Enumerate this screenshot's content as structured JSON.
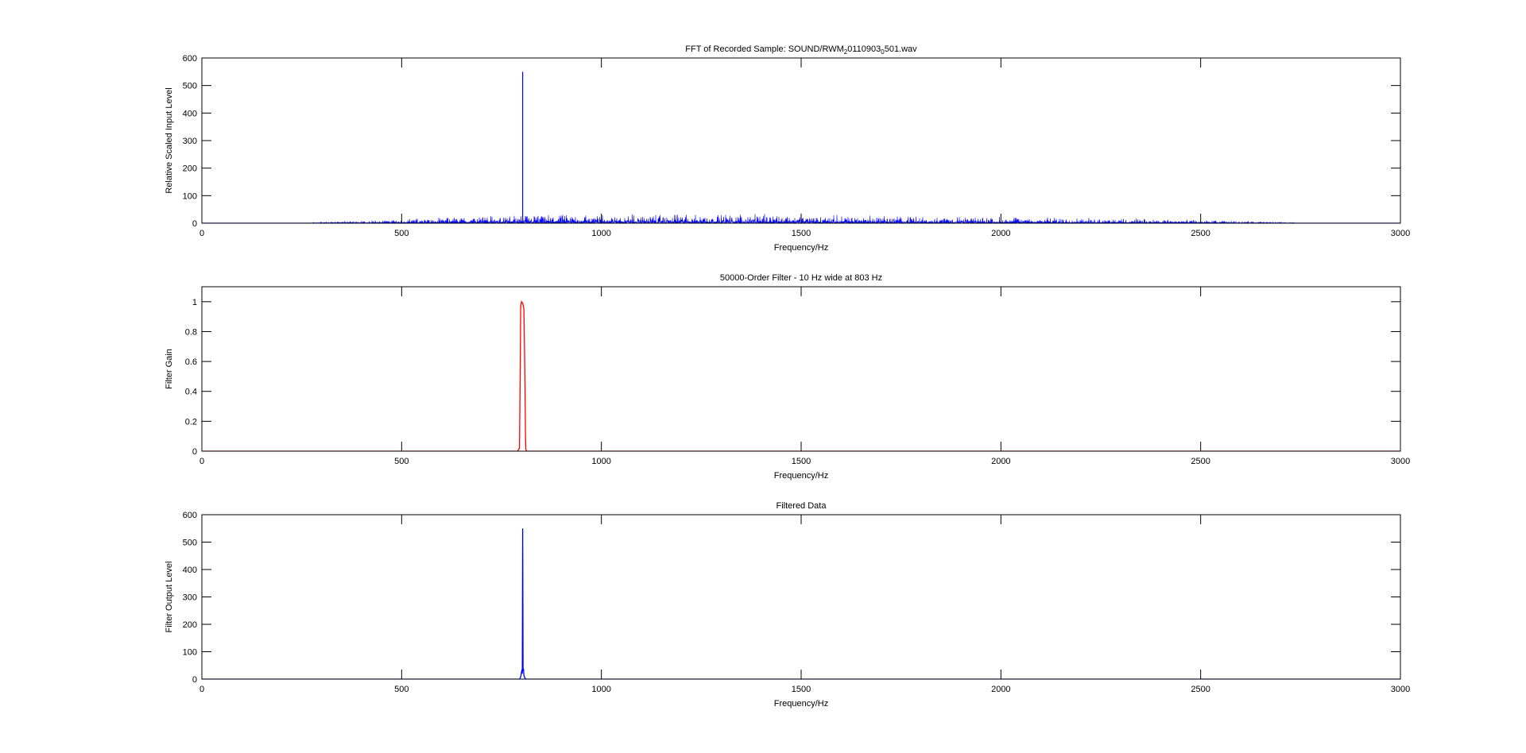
{
  "chart_data": [
    {
      "type": "line",
      "title": "FFT of Recorded Sample: SOUND/RWM",
      "title_sub1": "2",
      "title_mid": "0110903",
      "title_sub2": "0",
      "title_end": "501.wav",
      "xlabel": "Frequency/Hz",
      "ylabel": "Relative Scaled Input Level",
      "xlim": [
        0,
        3000
      ],
      "ylim": [
        0,
        600
      ],
      "xticks": [
        0,
        500,
        1000,
        1500,
        2000,
        2500,
        3000
      ],
      "yticks": [
        0,
        100,
        200,
        300,
        400,
        500,
        600
      ],
      "color": "#0000ff",
      "noise_envelope": {
        "x": [
          0,
          250,
          300,
          400,
          500,
          600,
          700,
          800,
          1000,
          1200,
          1400,
          1600,
          1800,
          2000,
          2200,
          2400,
          2500,
          2600,
          2700,
          2750,
          3000
        ],
        "y": [
          0,
          0,
          3,
          6,
          9,
          13,
          16,
          18,
          20,
          21,
          20,
          18,
          16,
          14,
          12,
          9,
          7,
          5,
          3,
          0,
          0
        ]
      },
      "peaks": [
        {
          "x": 803,
          "y": 550
        }
      ]
    },
    {
      "type": "line",
      "title": "50000-Order Filter - 10 Hz wide at 803 Hz",
      "xlabel": "Frequency/Hz",
      "ylabel": "Filter Gain",
      "xlim": [
        0,
        3000
      ],
      "ylim": [
        0,
        1.1
      ],
      "xticks": [
        0,
        500,
        1000,
        1500,
        2000,
        2500,
        3000
      ],
      "yticks": [
        0,
        0.2,
        0.4,
        0.6,
        0.8,
        1
      ],
      "color": "#ff0000",
      "series": {
        "x": [
          0,
          790,
          795,
          797,
          798,
          800,
          803,
          806,
          808,
          809,
          810,
          811,
          813,
          3000
        ],
        "y": [
          0,
          0,
          0.02,
          0.6,
          0.97,
          1.0,
          0.99,
          0.95,
          0.6,
          0.4,
          0.1,
          0.01,
          0,
          0
        ]
      }
    },
    {
      "type": "line",
      "title": "Filtered Data",
      "xlabel": "Frequency/Hz",
      "ylabel": "Filter Output Level",
      "xlim": [
        0,
        3000
      ],
      "ylim": [
        0,
        600
      ],
      "xticks": [
        0,
        500,
        1000,
        1500,
        2000,
        2500,
        3000
      ],
      "yticks": [
        0,
        100,
        200,
        300,
        400,
        500,
        600
      ],
      "color": "#0000ff",
      "series": {
        "x": [
          0,
          795,
          798,
          800,
          801,
          802,
          803,
          804,
          805,
          806,
          808,
          811,
          3000
        ],
        "y": [
          0,
          0,
          8,
          25,
          35,
          20,
          550,
          30,
          38,
          15,
          5,
          0,
          0
        ]
      }
    }
  ]
}
